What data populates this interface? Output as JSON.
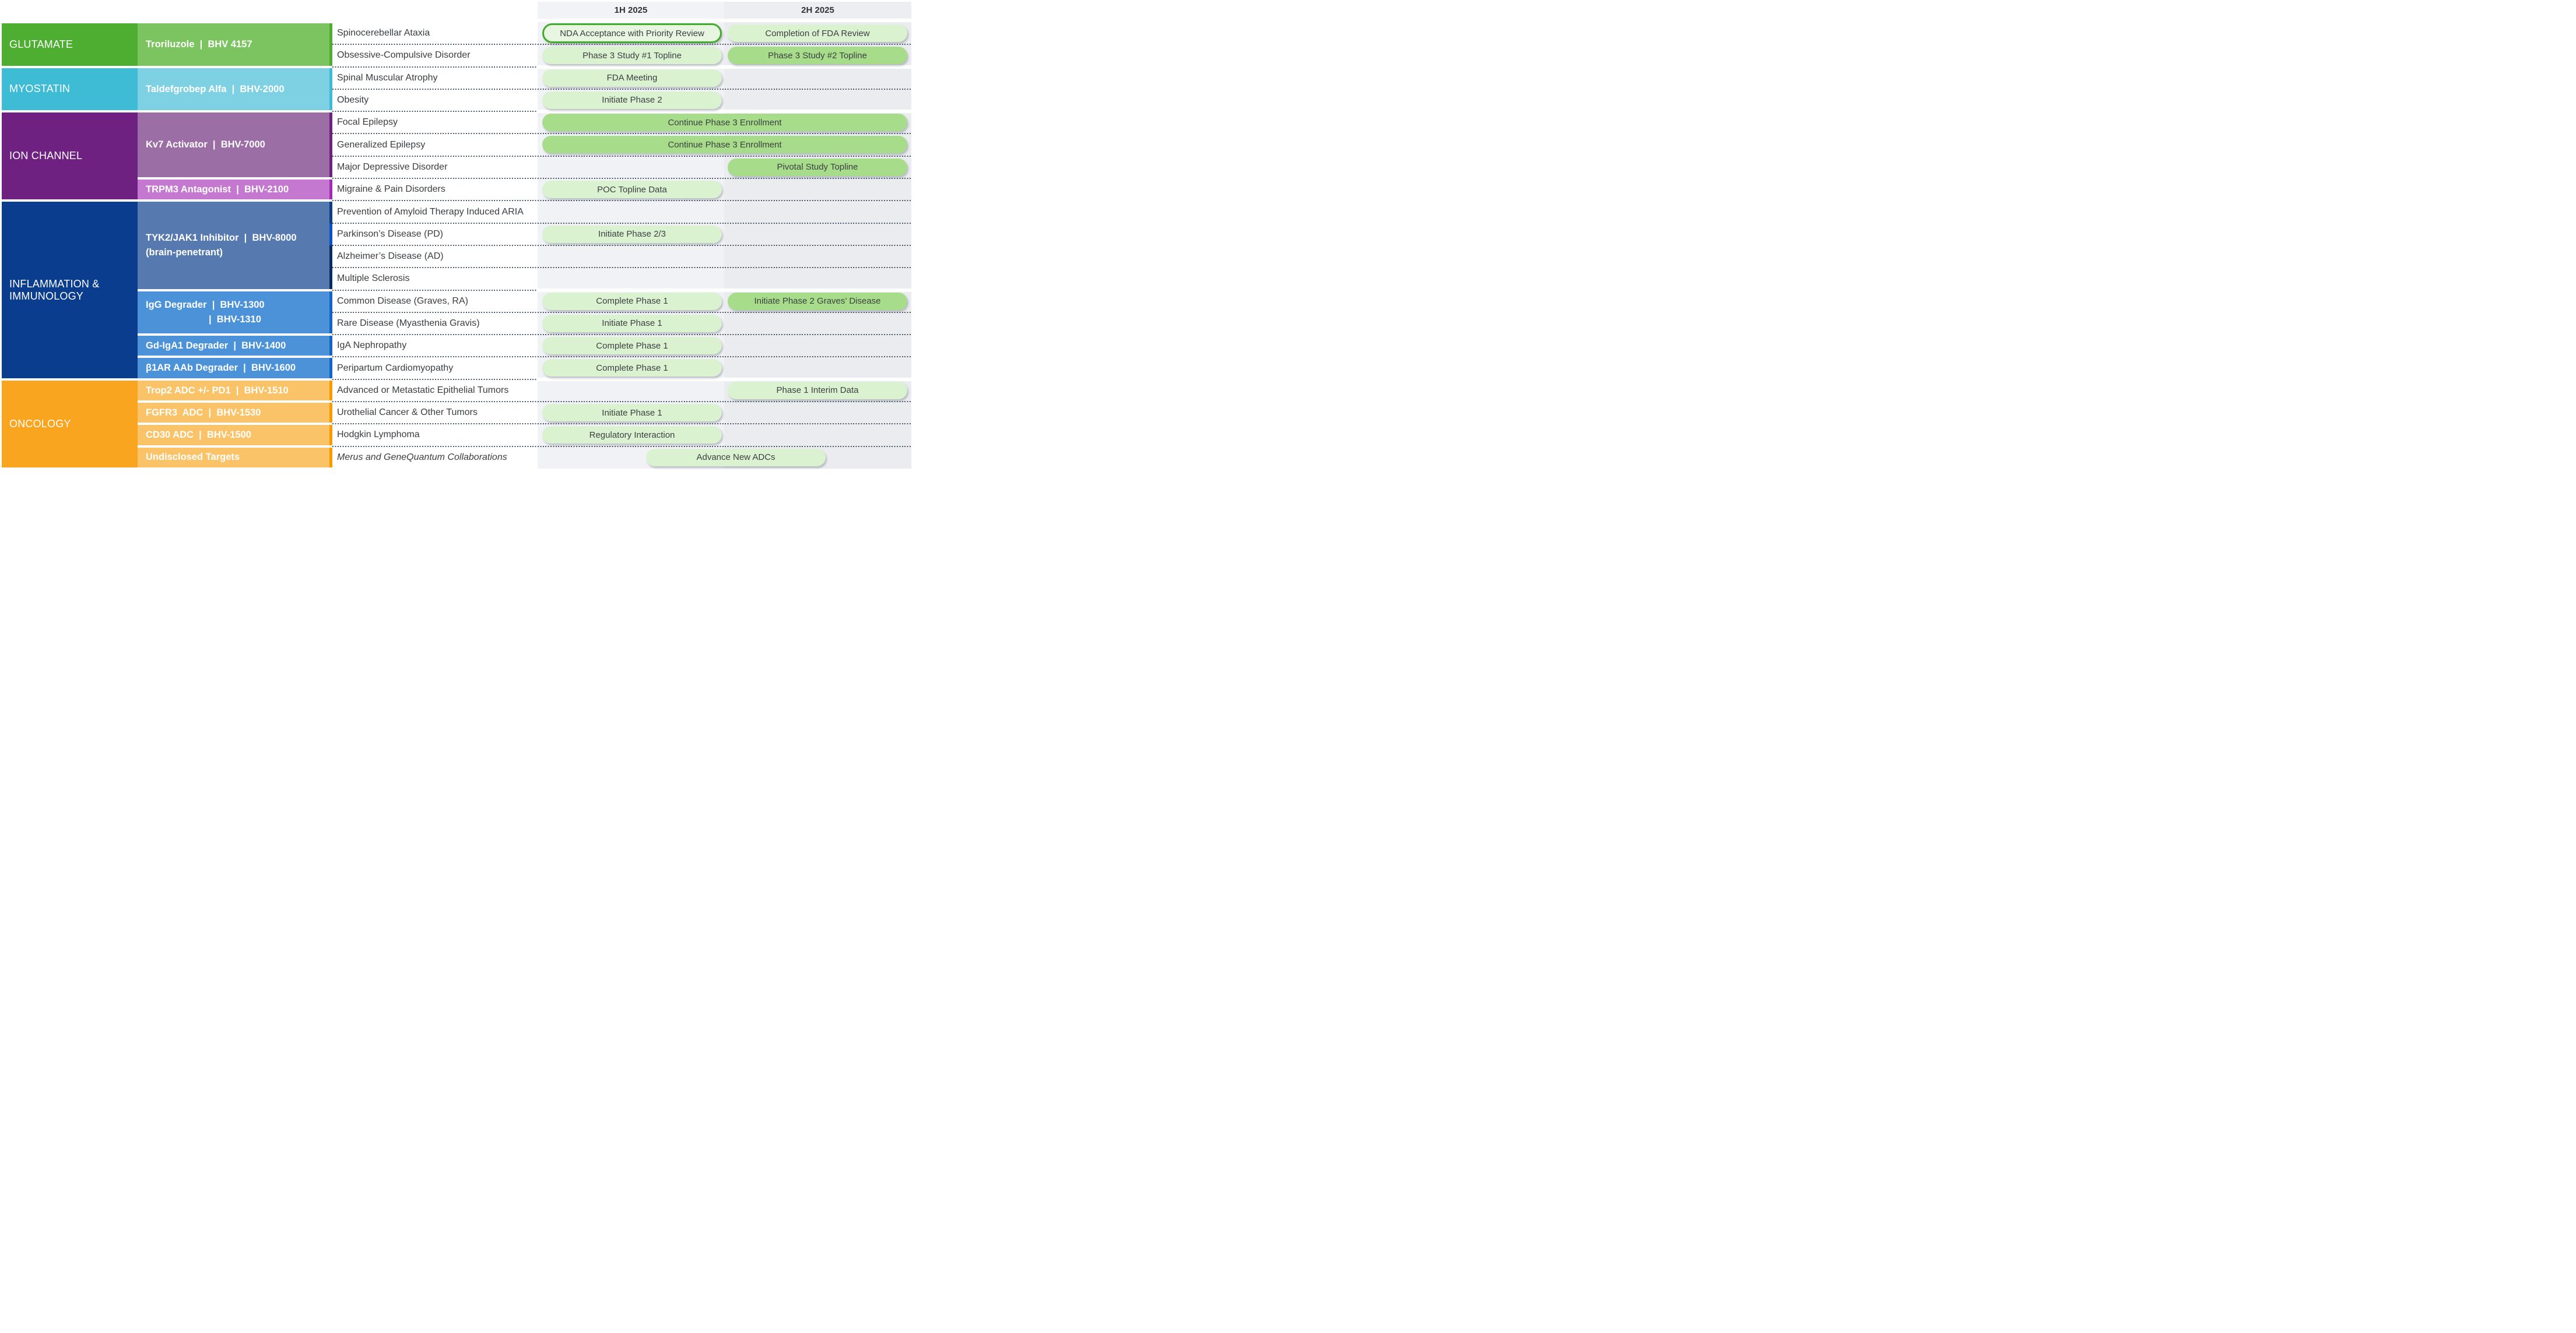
{
  "header": {
    "col1": "1H 2025",
    "col2": "2H 2025"
  },
  "palette": {
    "glutamate": "#4DAE32",
    "glutamate_light": "#7CC45F",
    "myostatin": "#3EBCD6",
    "myostatin_light": "#7ED1E2",
    "ion_channel": "#6E2180",
    "ion_channel_light": "#9B6FA6",
    "trpm3_light": "#C478CF",
    "trpm3_accent": "#A02BB5",
    "inflammation": "#0B3D8F",
    "tyk2_cell": "#5679AF",
    "degrader_cell": "#4B92D9",
    "degrader_accent": "#1565C6",
    "tyk2_accents": [
      "#0D3E7F",
      "#0A51C4",
      "#0A2B5E"
    ],
    "oncology": "#F9A51F",
    "oncology_light": "#FBC368",
    "oncology_accent": "#F89A00",
    "pill_light": "#DBF2D1",
    "pill_medium": "#A7DD8A",
    "pill_outline_fill": "#E7F5E1",
    "pill_outline_border": "#43AB2C",
    "col_1h_bg": "#F1F2F6",
    "col_2h_bg": "#EAECF0",
    "dash_color": "#4C5866"
  },
  "categories": [
    {
      "name": "GLUTAMATE"
    },
    {
      "name": "MYOSTATIN"
    },
    {
      "name": "ION CHANNEL"
    },
    {
      "name": "INFLAMMATION &\nIMMUNOLOGY"
    },
    {
      "name": "ONCOLOGY"
    }
  ],
  "drugs": [
    {
      "lines": [
        "Troriluzole  |  BHV 4157"
      ]
    },
    {
      "lines": [
        "Taldefgrobep Alfa  |  BHV-2000"
      ]
    },
    {
      "lines": [
        "Kv7 Activator  |  BHV-7000"
      ]
    },
    {
      "lines": [
        "TRPM3 Antagonist  |  BHV-2100"
      ]
    },
    {
      "lines": [
        "TYK2/JAK1 Inhibitor  |  BHV-8000",
        "(brain-penetrant)"
      ]
    },
    {
      "lines": [
        "IgG Degrader  |  BHV-1300",
        "|  BHV-1310"
      ]
    },
    {
      "lines": [
        "Gd-IgA1 Degrader  |  BHV-1400"
      ]
    },
    {
      "lines": [
        "β1AR AAb Degrader  |  BHV-1600"
      ]
    },
    {
      "lines": [
        "Trop2 ADC +/- PD1  |  BHV-1510"
      ]
    },
    {
      "lines": [
        "FGFR3  ADC  |  BHV-1530"
      ]
    },
    {
      "lines": [
        "CD30 ADC  |  BHV-1500"
      ]
    },
    {
      "lines": [
        "Undisclosed Targets"
      ]
    }
  ],
  "rows": [
    {
      "indication": "Spinocerebellar Ataxia",
      "milestones": [
        {
          "label": "NDA Acceptance with Priority Review",
          "span": "1H 2025",
          "style": "outlined"
        },
        {
          "label": "Completion of FDA Review",
          "span": "2H 2025",
          "style": "light"
        }
      ]
    },
    {
      "indication": "Obsessive-Compulsive Disorder",
      "milestones": [
        {
          "label": "Phase 3 Study #1 Topline",
          "span": "1H 2025",
          "style": "light"
        },
        {
          "label": "Phase 3 Study #2 Topline",
          "span": "2H 2025",
          "style": "medium"
        }
      ]
    },
    {
      "indication": "Spinal Muscular Atrophy",
      "milestones": [
        {
          "label": "FDA Meeting",
          "span": "1H 2025",
          "style": "light"
        }
      ]
    },
    {
      "indication": "Obesity",
      "milestones": [
        {
          "label": "Initiate Phase 2",
          "span": "1H 2025",
          "style": "light"
        }
      ]
    },
    {
      "indication": "Focal Epilepsy",
      "milestones": [
        {
          "label": "Continue Phase 3 Enrollment",
          "span": "1H+2H 2025",
          "style": "medium"
        }
      ]
    },
    {
      "indication": "Generalized Epilepsy",
      "milestones": [
        {
          "label": "Continue Phase 3 Enrollment",
          "span": "1H+2H 2025",
          "style": "medium"
        }
      ]
    },
    {
      "indication": "Major Depressive Disorder",
      "milestones": [
        {
          "label": "Pivotal Study Topline",
          "span": "2H 2025",
          "style": "medium"
        }
      ]
    },
    {
      "indication": "Migraine & Pain Disorders",
      "milestones": [
        {
          "label": "POC Topline Data",
          "span": "1H 2025",
          "style": "light"
        }
      ]
    },
    {
      "indication": "Prevention of Amyloid Therapy Induced ARIA",
      "milestones": []
    },
    {
      "indication": "Parkinson’s Disease (PD)",
      "milestones": [
        {
          "label": "Initiate Phase 2/3",
          "span": "1H 2025",
          "style": "light"
        }
      ]
    },
    {
      "indication": "Alzheimer’s Disease (AD)",
      "milestones": []
    },
    {
      "indication": "Multiple Sclerosis",
      "milestones": []
    },
    {
      "indication": "Common Disease (Graves, RA)",
      "milestones": [
        {
          "label": "Complete Phase 1",
          "span": "1H 2025",
          "style": "light"
        },
        {
          "label": "Initiate Phase 2 Graves’ Disease",
          "span": "2H 2025",
          "style": "medium"
        }
      ]
    },
    {
      "indication": "Rare Disease (Myasthenia Gravis)",
      "milestones": [
        {
          "label": "Initiate Phase 1",
          "span": "1H 2025",
          "style": "light"
        }
      ]
    },
    {
      "indication": "IgA Nephropathy",
      "milestones": [
        {
          "label": "Complete Phase 1",
          "span": "1H 2025",
          "style": "light"
        }
      ]
    },
    {
      "indication": "Peripartum Cardiomyopathy",
      "milestones": [
        {
          "label": "Complete Phase 1",
          "span": "1H 2025",
          "style": "light"
        }
      ]
    },
    {
      "indication": "Advanced or Metastatic Epithelial Tumors",
      "milestones": [
        {
          "label": "Phase 1 Interim Data",
          "span": "2H 2025",
          "style": "light"
        }
      ]
    },
    {
      "indication": "Urothelial Cancer & Other Tumors",
      "milestones": [
        {
          "label": "Initiate Phase 1",
          "span": "1H 2025",
          "style": "light"
        }
      ]
    },
    {
      "indication": "Hodgkin Lymphoma",
      "milestones": [
        {
          "label": "Regulatory Interaction",
          "span": "1H 2025",
          "style": "light"
        }
      ]
    },
    {
      "indication": "Merus and GeneQuantum Collaborations",
      "milestones": [
        {
          "label": "Advance New ADCs",
          "span": "center",
          "style": "light"
        }
      ]
    }
  ]
}
